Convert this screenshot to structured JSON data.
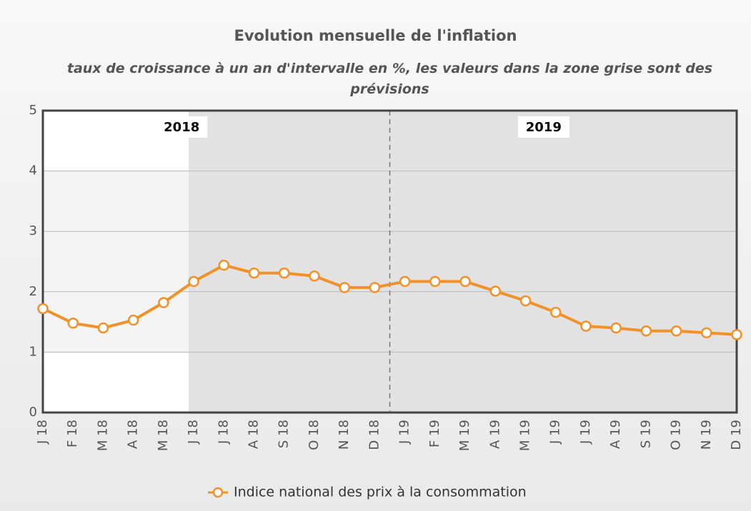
{
  "chart_data": {
    "type": "line",
    "title": "Evolution mensuelle de l'inflation",
    "subtitle": "taux de croissance à un an d'intervalle en %, les valeurs dans la zone grise sont des prévisions",
    "categories": [
      "J 18",
      "F 18",
      "M 18",
      "A 18",
      "M 18",
      "J 18",
      "J 18",
      "A 18",
      "S 18",
      "O 18",
      "N 18",
      "D 18",
      "J 19",
      "F 19",
      "M 19",
      "A 19",
      "M 19",
      "J 19",
      "J 19",
      "A 19",
      "S 19",
      "O 19",
      "N 19",
      "D 19"
    ],
    "series": [
      {
        "name": "Indice national des prix à la consommation",
        "color": "#f0912a",
        "values": [
          1.72,
          1.48,
          1.4,
          1.53,
          1.82,
          2.17,
          2.44,
          2.31,
          2.31,
          2.26,
          2.07,
          2.07,
          2.17,
          2.17,
          2.17,
          2.01,
          1.85,
          1.66,
          1.43,
          1.4,
          1.35,
          1.35,
          1.32,
          1.29
        ]
      }
    ],
    "annotations": [
      "2018",
      "2019"
    ],
    "ylim": [
      0,
      5
    ],
    "yticks": [
      0,
      1,
      2,
      3,
      4,
      5
    ],
    "grid": true,
    "legend": "bottom"
  }
}
